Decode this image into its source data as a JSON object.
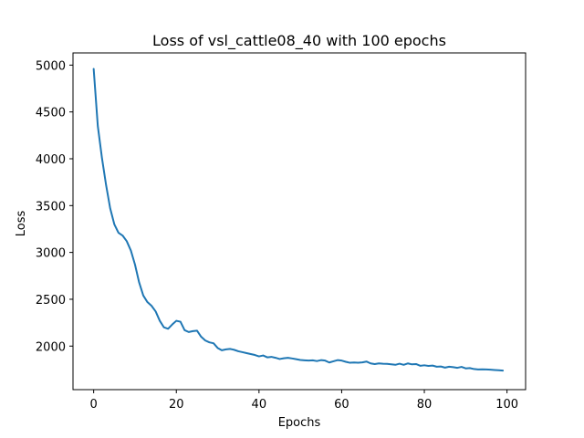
{
  "chart_data": {
    "type": "line",
    "title": "Loss of vsl_cattle08_40 with 100 epochs",
    "xlabel": "Epochs",
    "ylabel": "Loss",
    "xlim": [
      -5,
      104.5
    ],
    "ylim": [
      1535,
      5130
    ],
    "x_ticks": [
      0,
      20,
      40,
      60,
      80,
      100
    ],
    "y_ticks": [
      2000,
      2500,
      3000,
      3500,
      4000,
      4500,
      5000
    ],
    "grid": false,
    "legend": "none",
    "series": [
      {
        "color": "#1f77b4",
        "x": [
          0,
          1,
          2,
          3,
          4,
          5,
          6,
          7,
          8,
          9,
          10,
          11,
          12,
          13,
          14,
          15,
          16,
          17,
          18,
          19,
          20,
          21,
          22,
          23,
          24,
          25,
          26,
          27,
          28,
          29,
          30,
          31,
          32,
          33,
          34,
          35,
          36,
          37,
          38,
          39,
          40,
          41,
          42,
          43,
          44,
          45,
          46,
          47,
          48,
          49,
          50,
          51,
          52,
          53,
          54,
          55,
          56,
          57,
          58,
          59,
          60,
          61,
          62,
          63,
          64,
          65,
          66,
          67,
          68,
          69,
          70,
          71,
          72,
          73,
          74,
          75,
          76,
          77,
          78,
          79,
          80,
          81,
          82,
          83,
          84,
          85,
          86,
          87,
          88,
          89,
          90,
          91,
          92,
          93,
          94,
          95,
          96,
          97,
          98,
          99
        ],
        "y": [
          4960,
          4350,
          4010,
          3720,
          3470,
          3300,
          3210,
          3180,
          3120,
          3020,
          2870,
          2680,
          2540,
          2470,
          2430,
          2370,
          2270,
          2200,
          2185,
          2230,
          2270,
          2260,
          2170,
          2150,
          2160,
          2165,
          2100,
          2060,
          2040,
          2030,
          1980,
          1955,
          1965,
          1970,
          1960,
          1945,
          1935,
          1925,
          1915,
          1905,
          1890,
          1900,
          1880,
          1885,
          1875,
          1862,
          1870,
          1875,
          1868,
          1860,
          1852,
          1848,
          1845,
          1848,
          1840,
          1850,
          1845,
          1825,
          1838,
          1850,
          1845,
          1832,
          1822,
          1825,
          1822,
          1826,
          1835,
          1815,
          1808,
          1815,
          1812,
          1810,
          1805,
          1800,
          1812,
          1800,
          1815,
          1805,
          1808,
          1790,
          1795,
          1788,
          1792,
          1780,
          1782,
          1770,
          1780,
          1775,
          1768,
          1778,
          1762,
          1765,
          1755,
          1750,
          1752,
          1750,
          1748,
          1745,
          1742,
          1738
        ]
      }
    ]
  }
}
